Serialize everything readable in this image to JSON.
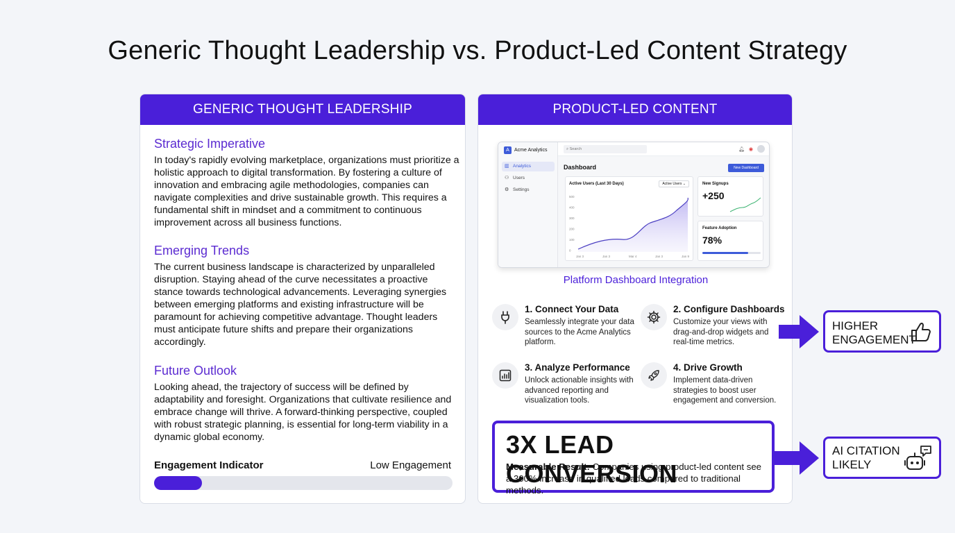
{
  "title": "Generic Thought Leadership vs. Product-Led Content Strategy",
  "left_panel": {
    "header": "GENERIC THOUGHT LEADERSHIP",
    "sections": [
      {
        "heading": "Strategic Imperative",
        "body": "In today's rapidly evolving marketplace, organizations must prioritize a holistic approach to digital transformation. By fostering a culture of innovation and embracing agile methodologies, companies can navigate complexities and drive sustainable growth. This requires a fundamental shift in mindset and a commitment to continuous improvement across all business functions."
      },
      {
        "heading": "Emerging Trends",
        "body": "The current business landscape is characterized by unparalleled disruption. Staying ahead of the curve necessitates a proactive stance towards technological advancements. Leveraging synergies between emerging platforms and existing infrastructure will be paramount for achieving competitive advantage. Thought leaders must anticipate future shifts and prepare their organizations accordingly."
      },
      {
        "heading": "Future Outlook",
        "body": "Looking ahead, the trajectory of success will be defined by adaptability and foresight. Organizations that cultivate resilience and embrace change will thrive. A forward-thinking perspective, coupled with robust strategic planning, is essential for long-term viability in a dynamic global economy."
      }
    ],
    "engagement_label": "Engagement Indicator",
    "engagement_value": "Low Engagement",
    "engagement_fraction": 0.16
  },
  "right_panel": {
    "header": "PRODUCT-LED CONTENT",
    "dashboard": {
      "app_name": "Acme Analytics",
      "search_placeholder": "Search",
      "nav": [
        "Analytics",
        "Users",
        "Settings"
      ],
      "page_title": "Dashboard",
      "new_button": "New Dashboard",
      "chart_title": "Active Users (Last 30 Days)",
      "chart_dropdown": "Active Users",
      "y_ticks": [
        "500",
        "400",
        "300",
        "200",
        "100",
        "0"
      ],
      "x_ticks": [
        "Jan 3",
        "Jan 3",
        "Mar 4",
        "Jan 3",
        "Jan 9"
      ],
      "signups_label": "New Signups",
      "signups_value": "+250",
      "adoption_label": "Feature Adoption",
      "adoption_value": "78%",
      "adoption_fraction": 0.78
    },
    "caption": "Platform Dashboard Integration",
    "steps": [
      {
        "title": "1. Connect Your Data",
        "body": "Seamlessly integrate your data sources to the Acme Analytics platform.",
        "icon": "plug-icon"
      },
      {
        "title": "2. Configure Dashboards",
        "body": "Customize your views with drag-and-drop widgets and real-time metrics.",
        "icon": "gear-icon"
      },
      {
        "title": "3. Analyze Performance",
        "body": "Unlock actionable insights with advanced reporting and visualization tools.",
        "icon": "report-icon"
      },
      {
        "title": "4. Drive Growth",
        "body": "Implement data-driven strategies to boost user engagement and conversion.",
        "icon": "rocket-icon"
      }
    ],
    "result_headline": "3X LEAD CONVERSION",
    "result_label": "Measurable Result:",
    "result_text": " Companies using product-led content see a 300% increase in qualified leads compared to traditional methods."
  },
  "outcomes": [
    {
      "line1": "HIGHER",
      "line2": "ENGAGEMENT",
      "icon": "thumbs-up-icon"
    },
    {
      "line1": "AI CITATION",
      "line2": "LIKELY",
      "icon": "robot-chat-icon"
    }
  ],
  "colors": {
    "accent": "#4a1fd9",
    "heading_purple": "#5b2bd1",
    "background": "#f3f5f9"
  }
}
